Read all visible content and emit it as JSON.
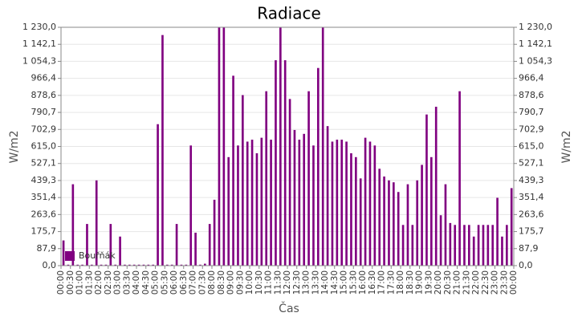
{
  "chart_data": {
    "type": "bar",
    "title": "Radiace",
    "y_label": "W/m2",
    "y2_label": "W/m2",
    "x_label": "Čas",
    "x": [
      0,
      0.25,
      0.5,
      0.75,
      1,
      1.25,
      1.5,
      1.75,
      2,
      2.25,
      2.5,
      2.75,
      3,
      3.25,
      3.5,
      3.75,
      4,
      4.25,
      4.5,
      4.75,
      5,
      5.25,
      5.5,
      5.75,
      6,
      6.25,
      6.5,
      6.75,
      7,
      7.25,
      7.5,
      7.75,
      8,
      8.25,
      8.5,
      8.75,
      9,
      9.25,
      9.5,
      9.75,
      10,
      10.25,
      10.5,
      10.75,
      11,
      11.25,
      11.5,
      11.75,
      12,
      12.25,
      12.5,
      12.75,
      13,
      13.25,
      13.5,
      13.75,
      14,
      14.25,
      14.5,
      14.75,
      15,
      15.25,
      15.5,
      15.75,
      16,
      16.25,
      16.5,
      16.75,
      17,
      17.25,
      17.5,
      17.75,
      18,
      18.25,
      18.5,
      18.75,
      19,
      19.25,
      19.5,
      19.75,
      20,
      20.25,
      20.5,
      20.75,
      21,
      21.25,
      21.5,
      21.75,
      22,
      22.25,
      22.5,
      22.75,
      23,
      23.25,
      23.5,
      23.75
    ],
    "series": [
      {
        "name": "Bouřňák",
        "color": "#800080",
        "values": [
          130,
          5,
          420,
          5,
          5,
          215,
          5,
          440,
          5,
          5,
          215,
          5,
          150,
          5,
          5,
          5,
          5,
          5,
          5,
          5,
          730,
          1190,
          5,
          5,
          215,
          5,
          5,
          620,
          170,
          5,
          10,
          215,
          340,
          1230,
          1230,
          560,
          980,
          620,
          880,
          640,
          650,
          580,
          660,
          900,
          650,
          1060,
          1230,
          1060,
          860,
          700,
          650,
          680,
          900,
          620,
          1020,
          1230,
          720,
          640,
          650,
          650,
          640,
          580,
          560,
          450,
          660,
          640,
          620,
          500,
          460,
          440,
          430,
          380,
          210,
          420,
          210,
          440,
          520,
          780,
          560,
          820,
          260,
          420,
          220,
          210,
          900,
          210,
          210,
          150,
          210,
          210,
          210,
          210,
          350,
          150,
          210,
          400
        ]
      }
    ],
    "xlim": [
      0,
      24
    ],
    "xticks": [
      {
        "value": 0,
        "label": "00:00"
      },
      {
        "value": 0.5,
        "label": "00:30"
      },
      {
        "value": 1,
        "label": "01:00"
      },
      {
        "value": 1.5,
        "label": "01:30"
      },
      {
        "value": 2,
        "label": "02:00"
      },
      {
        "value": 2.5,
        "label": "02:30"
      },
      {
        "value": 3,
        "label": "03:00"
      },
      {
        "value": 3.5,
        "label": "03:30"
      },
      {
        "value": 4,
        "label": "04:00"
      },
      {
        "value": 4.5,
        "label": "04:30"
      },
      {
        "value": 5,
        "label": "05:00"
      },
      {
        "value": 5.5,
        "label": "05:30"
      },
      {
        "value": 6,
        "label": "06:00"
      },
      {
        "value": 6.5,
        "label": "06:30"
      },
      {
        "value": 7,
        "label": "07:00"
      },
      {
        "value": 7.5,
        "label": "07:30"
      },
      {
        "value": 8,
        "label": "08:00"
      },
      {
        "value": 8.5,
        "label": "08:30"
      },
      {
        "value": 9,
        "label": "09:00"
      },
      {
        "value": 9.5,
        "label": "09:30"
      },
      {
        "value": 10,
        "label": "10:00"
      },
      {
        "value": 10.5,
        "label": "10:30"
      },
      {
        "value": 11,
        "label": "11:00"
      },
      {
        "value": 11.5,
        "label": "11:30"
      },
      {
        "value": 12,
        "label": "12:00"
      },
      {
        "value": 12.5,
        "label": "12:30"
      },
      {
        "value": 13,
        "label": "13:00"
      },
      {
        "value": 13.5,
        "label": "13:30"
      },
      {
        "value": 14,
        "label": "14:00"
      },
      {
        "value": 14.5,
        "label": "14:30"
      },
      {
        "value": 15,
        "label": "15:00"
      },
      {
        "value": 15.5,
        "label": "15:30"
      },
      {
        "value": 16,
        "label": "16:00"
      },
      {
        "value": 16.5,
        "label": "16:30"
      },
      {
        "value": 17,
        "label": "17:00"
      },
      {
        "value": 17.5,
        "label": "17:30"
      },
      {
        "value": 18,
        "label": "18:00"
      },
      {
        "value": 18.5,
        "label": "18:30"
      },
      {
        "value": 19,
        "label": "19:00"
      },
      {
        "value": 19.5,
        "label": "19:30"
      },
      {
        "value": 20,
        "label": "20:00"
      },
      {
        "value": 20.5,
        "label": "20:30"
      },
      {
        "value": 21,
        "label": "21:00"
      },
      {
        "value": 21.5,
        "label": "21:30"
      },
      {
        "value": 22,
        "label": "22:00"
      },
      {
        "value": 22.5,
        "label": "22:30"
      },
      {
        "value": 23,
        "label": "23:00"
      },
      {
        "value": 23.5,
        "label": "23:30"
      },
      {
        "value": 24,
        "label": "00:00"
      }
    ],
    "ylim": [
      0,
      1230
    ],
    "yticks": [
      {
        "value": 0,
        "label": "0,0"
      },
      {
        "value": 87.9,
        "label": "87,9"
      },
      {
        "value": 175.7,
        "label": "175,7"
      },
      {
        "value": 263.6,
        "label": "263,6"
      },
      {
        "value": 351.4,
        "label": "351,4"
      },
      {
        "value": 439.3,
        "label": "439,3"
      },
      {
        "value": 527.1,
        "label": "527,1"
      },
      {
        "value": 615,
        "label": "615,0"
      },
      {
        "value": 702.9,
        "label": "702,9"
      },
      {
        "value": 790.7,
        "label": "790,7"
      },
      {
        "value": 878.6,
        "label": "878,6"
      },
      {
        "value": 966.4,
        "label": "966,4"
      },
      {
        "value": 1054.3,
        "label": "1 054,3"
      },
      {
        "value": 1142.1,
        "label": "1 142,1"
      },
      {
        "value": 1230,
        "label": "1 230,0"
      }
    ],
    "y2lim": [
      0,
      1230
    ],
    "y2ticks": [
      {
        "value": 0,
        "label": "0,0"
      },
      {
        "value": 87.9,
        "label": "87,9"
      },
      {
        "value": 175.7,
        "label": "175,7"
      },
      {
        "value": 263.6,
        "label": "263,6"
      },
      {
        "value": 351.4,
        "label": "351,4"
      },
      {
        "value": 439.3,
        "label": "439,3"
      },
      {
        "value": 527.1,
        "label": "527,1"
      },
      {
        "value": 615,
        "label": "615,0"
      },
      {
        "value": 702.9,
        "label": "702,9"
      },
      {
        "value": 790.7,
        "label": "790,7"
      },
      {
        "value": 878.6,
        "label": "878,6"
      },
      {
        "value": 966.4,
        "label": "966,4"
      },
      {
        "value": 1054.3,
        "label": "1 054,3"
      },
      {
        "value": 1142.1,
        "label": "1 142,1"
      },
      {
        "value": 1230,
        "label": "1 230,0"
      }
    ],
    "grid": true,
    "legend": "lower-left"
  }
}
